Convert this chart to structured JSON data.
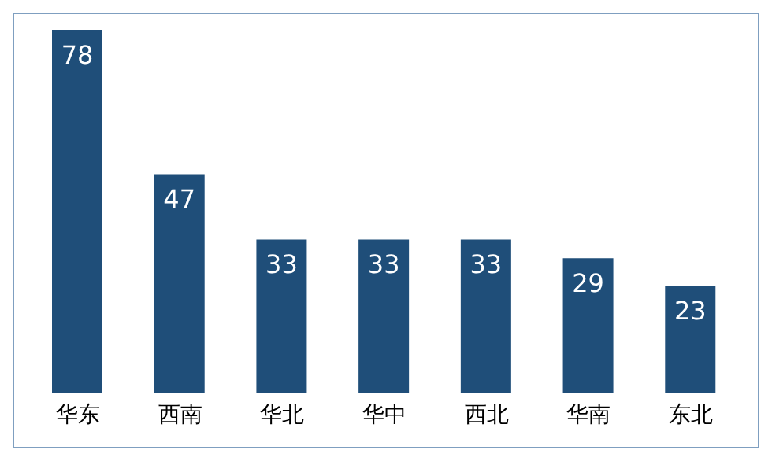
{
  "chart_data": {
    "type": "bar",
    "categories": [
      "华东",
      "西南",
      "华北",
      "华中",
      "西北",
      "华南",
      "东北"
    ],
    "values": [
      78,
      47,
      33,
      33,
      33,
      29,
      23
    ],
    "color": "#1f4e79",
    "data_labels": true,
    "grid": false,
    "legend": false
  }
}
